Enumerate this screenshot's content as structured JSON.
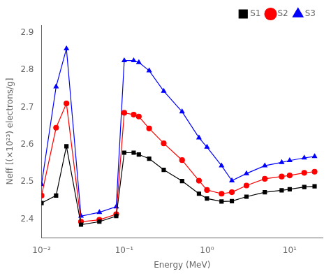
{
  "chart_data": {
    "type": "line",
    "xlabel": "Energy (MeV)",
    "ylabel": "Neff [(×10²³) electrons/g]",
    "x": [
      0.01,
      0.015,
      0.02,
      0.03,
      0.05,
      0.08,
      0.1,
      0.13,
      0.15,
      0.2,
      0.3,
      0.5,
      0.8,
      1.0,
      1.5,
      2.0,
      3.0,
      5.0,
      8.0,
      10.0,
      15.0,
      20.0
    ],
    "series": [
      {
        "name": "S1",
        "color": "#000000",
        "marker": "square",
        "values": [
          2.443,
          2.463,
          2.595,
          2.385,
          2.393,
          2.408,
          2.578,
          2.578,
          2.573,
          2.562,
          2.532,
          2.502,
          2.468,
          2.455,
          2.447,
          2.448,
          2.46,
          2.472,
          2.477,
          2.48,
          2.486,
          2.488
        ]
      },
      {
        "name": "S2",
        "color": "#ff0000",
        "marker": "circle",
        "values": [
          2.463,
          2.645,
          2.71,
          2.393,
          2.398,
          2.413,
          2.685,
          2.68,
          2.675,
          2.643,
          2.603,
          2.558,
          2.503,
          2.478,
          2.468,
          2.472,
          2.49,
          2.508,
          2.514,
          2.517,
          2.524,
          2.527
        ]
      },
      {
        "name": "S3",
        "color": "#0000ff",
        "marker": "triangle",
        "values": [
          2.493,
          2.755,
          2.857,
          2.408,
          2.418,
          2.433,
          2.825,
          2.825,
          2.82,
          2.798,
          2.743,
          2.688,
          2.618,
          2.593,
          2.543,
          2.503,
          2.522,
          2.543,
          2.552,
          2.557,
          2.564,
          2.568
        ]
      }
    ],
    "xlim": [
      0.01,
      25
    ],
    "ylim": [
      2.35,
      2.92
    ],
    "xticks": [
      {
        "value": 0.01,
        "label": "10⁻²"
      },
      {
        "value": 0.1,
        "label": "10⁻¹"
      },
      {
        "value": 1,
        "label": "10⁰"
      },
      {
        "value": 10,
        "label": "10¹"
      }
    ],
    "yticks": [
      2.4,
      2.5,
      2.6,
      2.7,
      2.8,
      2.9
    ],
    "log": "x",
    "grid": false,
    "legend": "upper right"
  }
}
